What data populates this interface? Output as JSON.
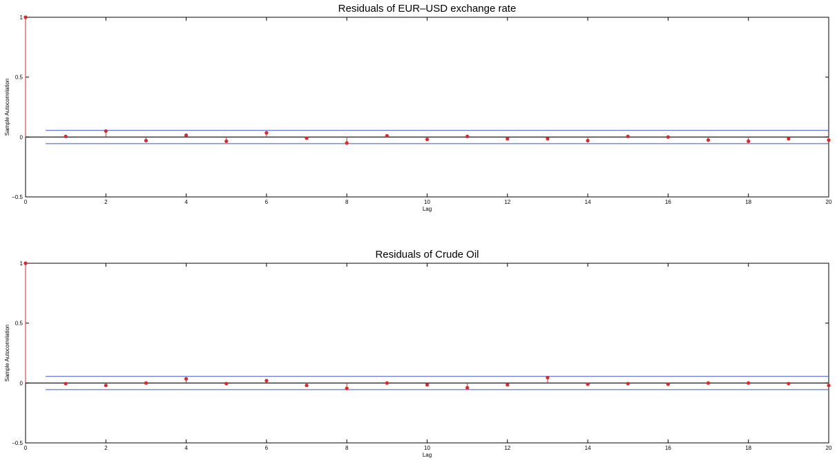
{
  "chart_data": [
    {
      "type": "stem",
      "title": "Residuals of EUR–USD exchange rate",
      "xlabel": "Lag",
      "ylabel": "Sample Autocorrelation",
      "xlim": [
        0,
        20
      ],
      "ylim": [
        -0.5,
        1
      ],
      "x_ticks": [
        "0",
        "2",
        "4",
        "6",
        "8",
        "10",
        "12",
        "14",
        "16",
        "18",
        "20"
      ],
      "y_ticks": [
        "−0.5",
        "0",
        "0.5",
        "1"
      ],
      "confidence_bounds": [
        0.055,
        -0.055
      ],
      "series": [
        {
          "x": [
            0,
            1,
            2,
            3,
            4,
            5,
            6,
            7,
            8,
            9,
            10,
            11,
            12,
            13,
            14,
            15,
            16,
            17,
            18,
            19,
            20
          ],
          "values": [
            1.0,
            0.005,
            0.05,
            -0.03,
            0.015,
            -0.035,
            0.035,
            -0.01,
            -0.05,
            0.01,
            -0.02,
            0.005,
            -0.015,
            -0.015,
            -0.03,
            0.005,
            0.0,
            -0.025,
            -0.035,
            -0.015,
            -0.025
          ]
        }
      ],
      "colors": {
        "stem": "#e0262b",
        "bounds": "#3a56c4",
        "zero": "#000000"
      },
      "grid": false
    },
    {
      "type": "stem",
      "title": "Residuals of Crude Oil",
      "xlabel": "Lag",
      "ylabel": "Sample Autocorrelation",
      "xlim": [
        0,
        20
      ],
      "ylim": [
        -0.5,
        1
      ],
      "x_ticks": [
        "0",
        "2",
        "4",
        "6",
        "8",
        "10",
        "12",
        "14",
        "16",
        "18",
        "20"
      ],
      "y_ticks": [
        "−0.5",
        "0",
        "0.5",
        "1"
      ],
      "confidence_bounds": [
        0.055,
        -0.055
      ],
      "series": [
        {
          "x": [
            0,
            1,
            2,
            3,
            4,
            5,
            6,
            7,
            8,
            9,
            10,
            11,
            12,
            13,
            14,
            15,
            16,
            17,
            18,
            19,
            20
          ],
          "values": [
            1.0,
            -0.005,
            -0.02,
            0.0,
            0.035,
            -0.005,
            0.02,
            -0.02,
            -0.045,
            0.0,
            -0.015,
            -0.04,
            -0.015,
            0.045,
            -0.01,
            -0.005,
            -0.01,
            0.0,
            0.0,
            -0.005,
            -0.02
          ]
        }
      ],
      "colors": {
        "stem": "#e0262b",
        "bounds": "#3a56c4",
        "zero": "#000000"
      },
      "grid": false
    }
  ]
}
